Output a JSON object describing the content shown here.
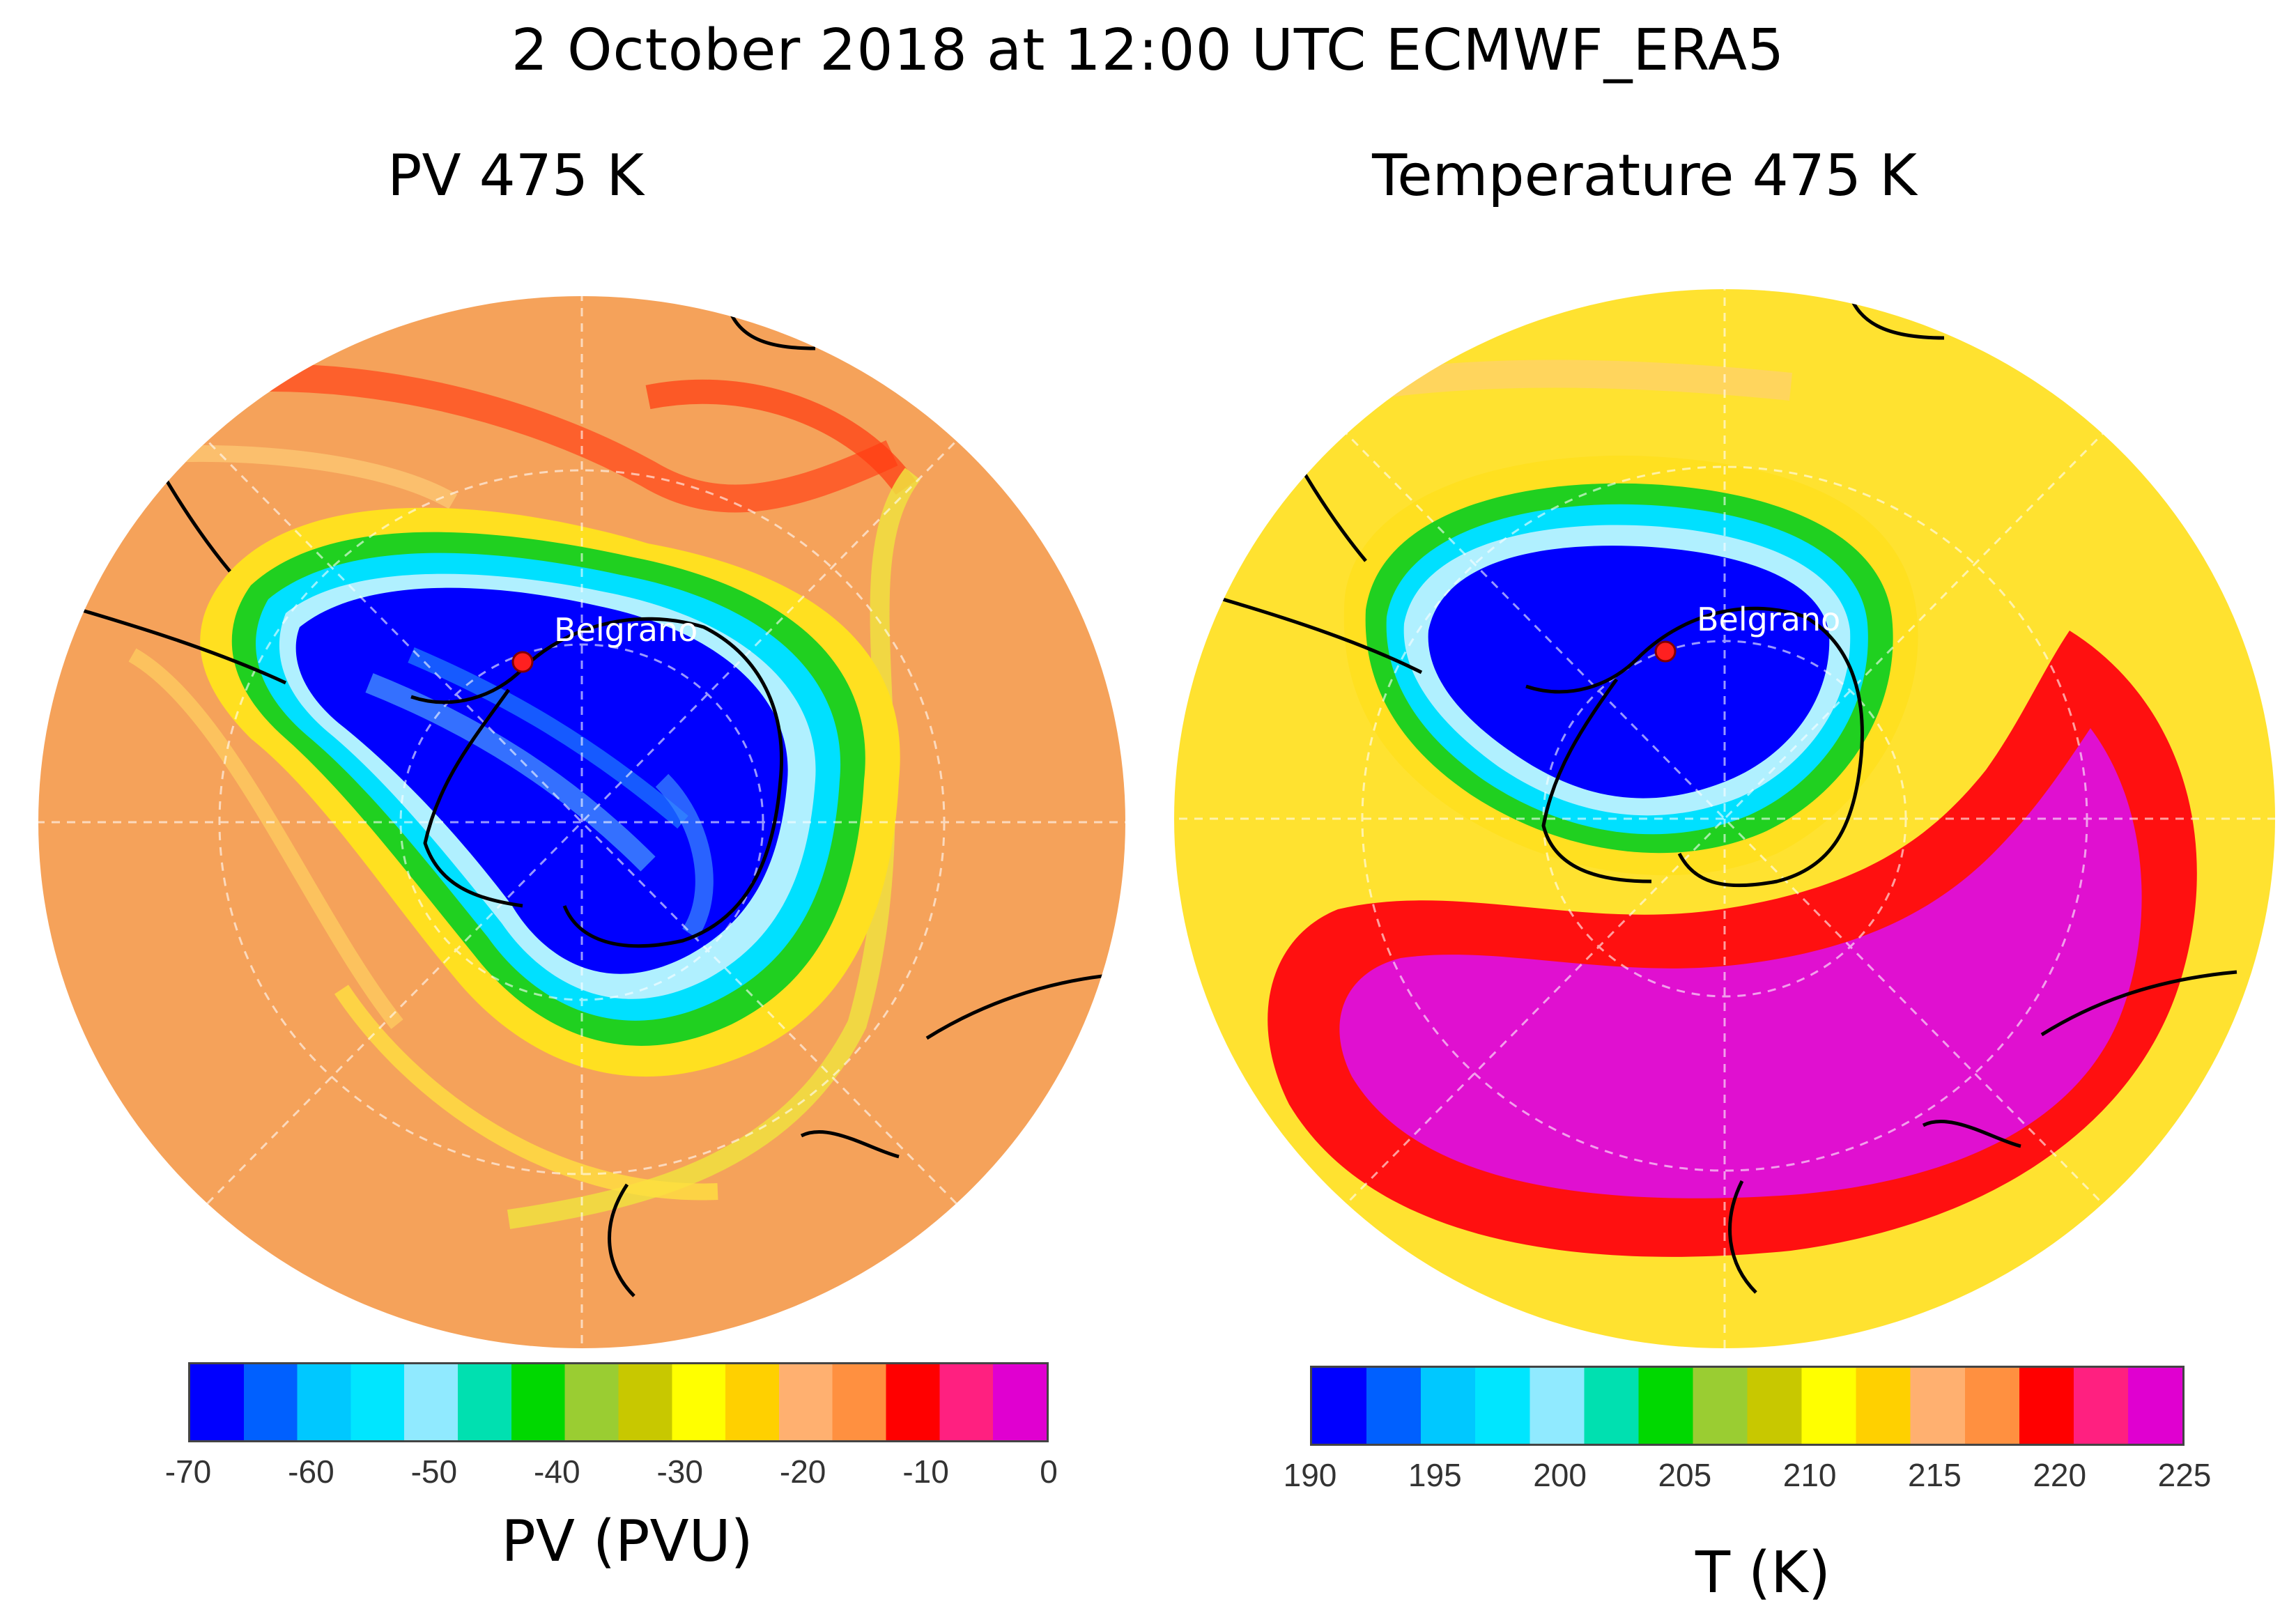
{
  "figure": {
    "title": "2 October 2018 at 12:00 UTC ECMWF_ERA5"
  },
  "panels": [
    {
      "id": "pv",
      "title": "PV 475 K",
      "station_label": "Belgrano",
      "colorbar": {
        "label": "PV (PVU)",
        "ticks": [
          "-70",
          "-60",
          "-50",
          "-40",
          "-30",
          "-20",
          "-10",
          "0"
        ],
        "range": [
          -70,
          0
        ],
        "colors": [
          "#0000ff",
          "#0060ff",
          "#00c8ff",
          "#00e6ff",
          "#90eaff",
          "#00e0b0",
          "#00d800",
          "#9acd32",
          "#c8c800",
          "#ffff00",
          "#ffd000",
          "#ffb070",
          "#ff9040",
          "#ff0000",
          "#ff2080",
          "#e000d0"
        ]
      }
    },
    {
      "id": "temperature",
      "title": "Temperature 475 K",
      "station_label": "Belgrano",
      "colorbar": {
        "label": "T (K)",
        "ticks": [
          "190",
          "195",
          "200",
          "205",
          "210",
          "215",
          "220",
          "225"
        ],
        "range": [
          190,
          225
        ],
        "colors": [
          "#0000ff",
          "#0060ff",
          "#00c8ff",
          "#00e6ff",
          "#90eaff",
          "#00e0b0",
          "#00d800",
          "#9acd32",
          "#c8c800",
          "#ffff00",
          "#ffd000",
          "#ffb070",
          "#ff9040",
          "#ff0000",
          "#ff2080",
          "#e000d0"
        ]
      }
    }
  ]
}
